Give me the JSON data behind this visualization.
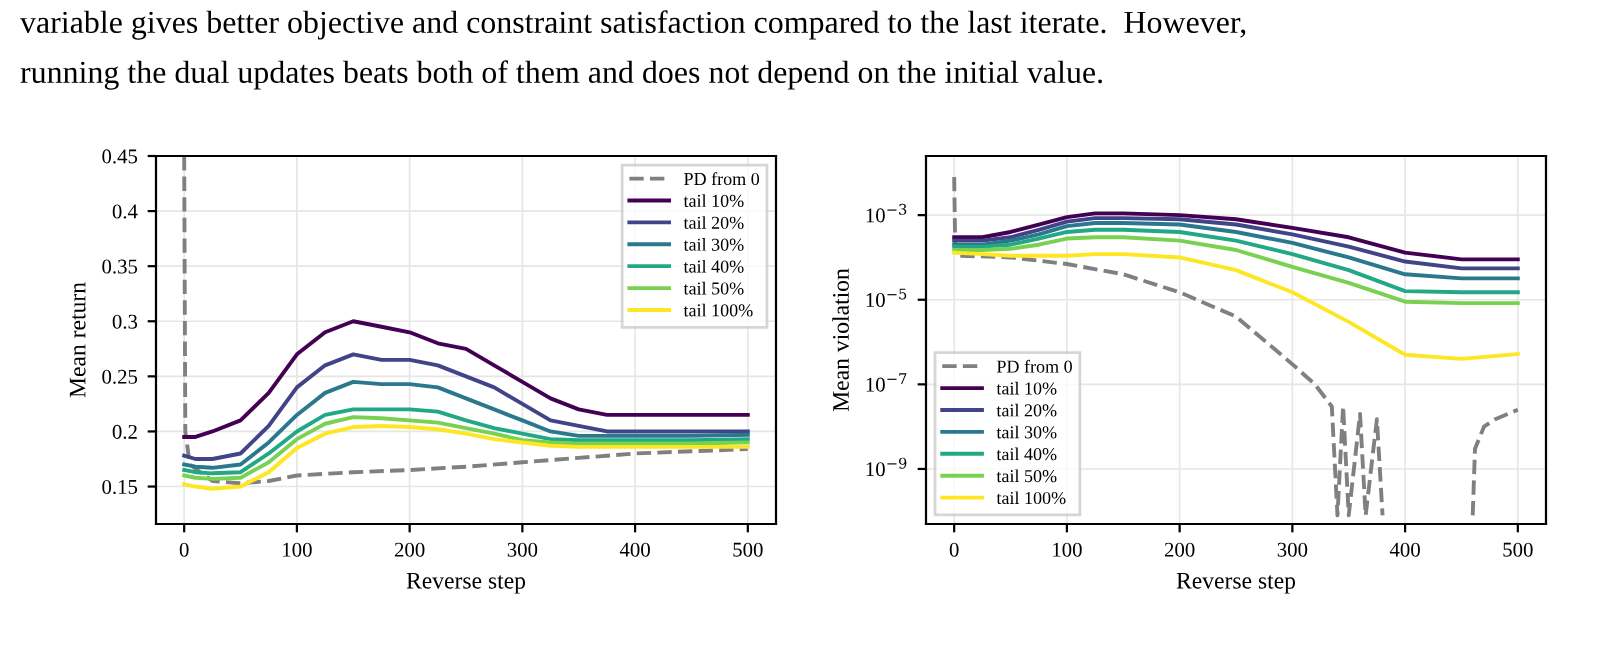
{
  "chart_data": [
    {
      "type": "other",
      "annotations": [
        "variable gives better objective and constraint satisfaction compared to the last iterate.  However,",
        "running the dual updates beats both of them and does not depend on the initial value."
      ]
    },
    {
      "type": "line",
      "xlabel": "Reverse step",
      "ylabel": "Mean return",
      "xlim": [
        -25,
        525
      ],
      "xticks": [
        0,
        100,
        200,
        300,
        400,
        500
      ],
      "ylim": [
        0.116,
        0.45
      ],
      "yticks": [
        0.15,
        0.2,
        0.25,
        0.3,
        0.35,
        0.4,
        0.45
      ],
      "grid": true,
      "legend": "top right",
      "x": [
        0,
        10,
        25,
        50,
        75,
        100,
        125,
        150,
        175,
        200,
        225,
        250,
        275,
        300,
        325,
        350,
        375,
        400,
        450,
        500
      ],
      "series": [
        {
          "name": "PD from 0",
          "color": "#808080",
          "line_style": "dashed",
          "x": [
            0,
            1,
            5,
            25,
            50,
            75,
            100,
            150,
            200,
            250,
            300,
            350,
            400,
            450,
            500
          ],
          "values": [
            0.45,
            0.2,
            0.17,
            0.155,
            0.153,
            0.155,
            0.16,
            0.163,
            0.165,
            0.168,
            0.172,
            0.176,
            0.18,
            0.182,
            0.184
          ]
        },
        {
          "name": "tail 10%",
          "color": "#440154",
          "values": [
            0.195,
            0.195,
            0.2,
            0.21,
            0.235,
            0.27,
            0.29,
            0.3,
            0.295,
            0.29,
            0.28,
            0.275,
            0.26,
            0.245,
            0.23,
            0.22,
            0.215,
            0.215,
            0.215,
            0.215
          ]
        },
        {
          "name": "tail 20%",
          "color": "#414487",
          "values": [
            0.178,
            0.175,
            0.175,
            0.18,
            0.205,
            0.24,
            0.26,
            0.27,
            0.265,
            0.265,
            0.26,
            0.25,
            0.24,
            0.225,
            0.21,
            0.205,
            0.2,
            0.2,
            0.2,
            0.2
          ]
        },
        {
          "name": "tail 30%",
          "color": "#2a788e",
          "values": [
            0.17,
            0.168,
            0.167,
            0.17,
            0.19,
            0.215,
            0.235,
            0.245,
            0.243,
            0.243,
            0.24,
            0.23,
            0.22,
            0.21,
            0.2,
            0.196,
            0.196,
            0.196,
            0.196,
            0.197
          ]
        },
        {
          "name": "tail 40%",
          "color": "#22a884",
          "values": [
            0.165,
            0.163,
            0.162,
            0.163,
            0.18,
            0.2,
            0.215,
            0.22,
            0.22,
            0.22,
            0.218,
            0.21,
            0.203,
            0.198,
            0.193,
            0.192,
            0.192,
            0.192,
            0.192,
            0.193
          ]
        },
        {
          "name": "tail 50%",
          "color": "#7ad151",
          "values": [
            0.16,
            0.158,
            0.157,
            0.158,
            0.172,
            0.193,
            0.207,
            0.213,
            0.212,
            0.21,
            0.208,
            0.203,
            0.198,
            0.192,
            0.19,
            0.189,
            0.189,
            0.189,
            0.189,
            0.19
          ]
        },
        {
          "name": "tail 100%",
          "color": "#fde725",
          "values": [
            0.152,
            0.15,
            0.148,
            0.15,
            0.163,
            0.185,
            0.198,
            0.204,
            0.205,
            0.204,
            0.202,
            0.198,
            0.193,
            0.19,
            0.187,
            0.186,
            0.186,
            0.186,
            0.186,
            0.186
          ]
        }
      ]
    },
    {
      "type": "line",
      "xlabel": "Reverse step",
      "ylabel": "Mean violation",
      "log": "y",
      "xlim": [
        -25,
        525
      ],
      "xticks": [
        0,
        100,
        200,
        300,
        400,
        500
      ],
      "ylim": [
        5e-11,
        0.025
      ],
      "yticks": [
        {
          "value": 1e-09,
          "label": "10$^{−9}$"
        },
        {
          "value": 1e-07,
          "label": "10$^{−7}$"
        },
        {
          "value": 1e-05,
          "label": "10$^{−5}$"
        },
        {
          "value": 0.001,
          "label": "10$^{−3}$"
        }
      ],
      "grid": true,
      "legend": "bottom left",
      "x": [
        0,
        25,
        50,
        75,
        100,
        125,
        150,
        200,
        250,
        300,
        350,
        400,
        450,
        500
      ],
      "series": [
        {
          "name": "PD from 0",
          "color": "#808080",
          "line_style": "dashed",
          "x": [
            0,
            1,
            5,
            50,
            100,
            150,
            200,
            250,
            300,
            320,
            335,
            340,
            345,
            350,
            360,
            365,
            375,
            380,
            420,
            460,
            462,
            470,
            480,
            500
          ],
          "values": [
            0.008,
            0.00012,
            0.00011,
            0.0001,
            7e-05,
            4e-05,
            1.5e-05,
            4e-06,
            3e-07,
            1e-07,
            3e-08,
            8e-11,
            3e-08,
            8e-11,
            2e-08,
            8e-11,
            1.5e-08,
            8e-11,
            null,
            8e-11,
            3e-09,
            1e-08,
            1.5e-08,
            2.5e-08
          ]
        },
        {
          "name": "tail 10%",
          "color": "#440154",
          "values": [
            0.0003,
            0.0003,
            0.0004,
            0.0006,
            0.0009,
            0.0011,
            0.0011,
            0.001,
            0.0008,
            0.0005,
            0.0003,
            0.00013,
            9e-05,
            9e-05
          ]
        },
        {
          "name": "tail 20%",
          "color": "#414487",
          "values": [
            0.00025,
            0.00025,
            0.0003,
            0.00045,
            0.0007,
            0.00085,
            0.00085,
            0.0008,
            0.0006,
            0.00035,
            0.00018,
            8e-05,
            5.5e-05,
            5.5e-05
          ]
        },
        {
          "name": "tail 30%",
          "color": "#2a788e",
          "values": [
            0.0002,
            0.0002,
            0.00025,
            0.00035,
            0.00055,
            0.00065,
            0.00065,
            0.0006,
            0.0004,
            0.00022,
            0.0001,
            4e-05,
            3.2e-05,
            3.2e-05
          ]
        },
        {
          "name": "tail 40%",
          "color": "#22a884",
          "values": [
            0.00018,
            0.00018,
            0.0002,
            0.00028,
            0.0004,
            0.00045,
            0.00045,
            0.0004,
            0.00025,
            0.00012,
            5e-05,
            1.6e-05,
            1.5e-05,
            1.5e-05
          ]
        },
        {
          "name": "tail 50%",
          "color": "#7ad151",
          "values": [
            0.00015,
            0.00015,
            0.00016,
            0.0002,
            0.00028,
            0.0003,
            0.0003,
            0.00025,
            0.00015,
            6e-05,
            2.5e-05,
            9e-06,
            8.3e-06,
            8.3e-06
          ]
        },
        {
          "name": "tail 100%",
          "color": "#fde725",
          "values": [
            0.00013,
            0.00012,
            0.00011,
            0.00011,
            0.00011,
            0.00012,
            0.00012,
            0.0001,
            5e-05,
            1.5e-05,
            3e-06,
            5e-07,
            4e-07,
            5.2e-07
          ]
        }
      ]
    }
  ]
}
